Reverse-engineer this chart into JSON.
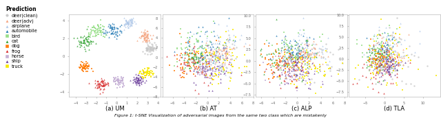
{
  "subfig_labels": [
    "(a) UM",
    "(b) AT",
    "(c) ALP",
    "(d) TLA"
  ],
  "caption": "Figure 1: t-SNE Visualization of adversarial images from the same two class which are mistakenly",
  "legend_title": "Prediction",
  "legend_entries": [
    {
      "label": "deer(clean)",
      "color": "#c8c8c8",
      "marker": "o"
    },
    {
      "label": "deer(adv)",
      "color": "#f4a07a",
      "marker": "^"
    },
    {
      "label": "airplane",
      "color": "#aec7e8",
      "marker": "^"
    },
    {
      "label": "automobile",
      "color": "#1f77b4",
      "marker": "^"
    },
    {
      "label": "bird",
      "color": "#98df8a",
      "marker": "s"
    },
    {
      "label": "cat",
      "color": "#2ca02c",
      "marker": "^"
    },
    {
      "label": "dog",
      "color": "#ff7f0e",
      "marker": "s"
    },
    {
      "label": "frog",
      "color": "#d62728",
      "marker": "^"
    },
    {
      "label": "horse",
      "color": "#c5b0d5",
      "marker": "s"
    },
    {
      "label": "ship",
      "color": "#6a3d9a",
      "marker": "^"
    },
    {
      "label": "truck",
      "color": "#f7e800",
      "marker": "s"
    }
  ],
  "class_colors": [
    "#c8c8c8",
    "#f4a07a",
    "#aec7e8",
    "#1f77b4",
    "#98df8a",
    "#2ca02c",
    "#ff7f0e",
    "#d62728",
    "#c5b0d5",
    "#6a3d9a",
    "#f7e800"
  ],
  "class_markers": [
    "o",
    "^",
    "^",
    "^",
    "s",
    "^",
    "s",
    "^",
    "s",
    "^",
    "s"
  ],
  "bg_color": "#ffffff",
  "fig_width": 6.4,
  "fig_height": 1.72,
  "dpi": 100,
  "subplot_params": [
    {
      "spread": 0.6,
      "r": 3.5,
      "seed": 1
    },
    {
      "spread": 1.8,
      "r": 2.5,
      "seed": 2
    },
    {
      "spread": 2.0,
      "r": 2.2,
      "seed": 3
    },
    {
      "spread": 2.5,
      "r": 1.8,
      "seed": 4
    }
  ]
}
